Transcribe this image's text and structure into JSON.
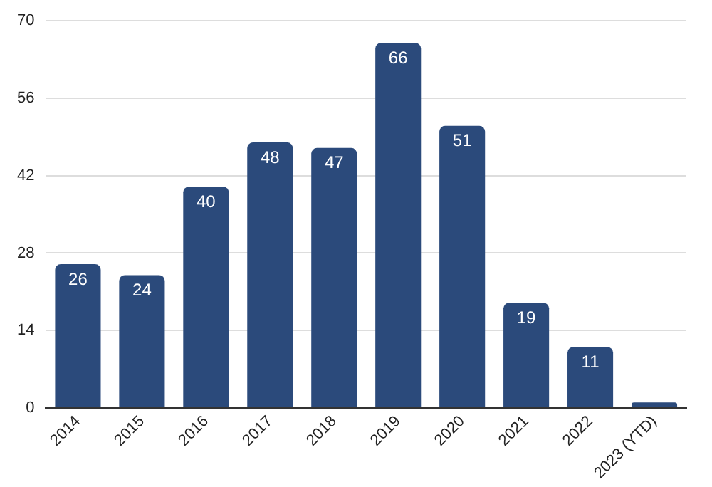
{
  "chart_data": {
    "type": "bar",
    "categories": [
      "2014",
      "2015",
      "2016",
      "2017",
      "2018",
      "2019",
      "2020",
      "2021",
      "2022",
      "2023 (YTD)"
    ],
    "values": [
      26,
      24,
      40,
      48,
      47,
      66,
      51,
      19,
      11,
      1
    ],
    "value_labels": [
      "26",
      "24",
      "40",
      "48",
      "47",
      "66",
      "51",
      "19",
      "11",
      null
    ],
    "color": "#2b4a7b",
    "ylim": [
      0,
      70
    ],
    "yticks": [
      0,
      14,
      28,
      42,
      56,
      70
    ],
    "grid": "y",
    "legend": false
  }
}
